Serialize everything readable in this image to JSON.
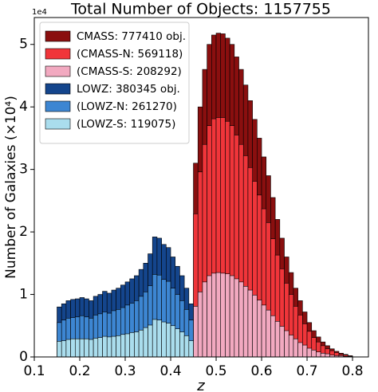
{
  "chart_data": {
    "type": "histogram",
    "title": "Total Number of Objects: 1157755",
    "xlabel": "z",
    "ylabel": "Number of Galaxies (×10⁴)",
    "y_offset_text": "1e4",
    "xlim": [
      0.1,
      0.835
    ],
    "ylim": [
      0,
      5.43
    ],
    "xticks": [
      0.1,
      0.2,
      0.3,
      0.4,
      0.5,
      0.6,
      0.7,
      0.8
    ],
    "yticks": [
      0,
      1,
      2,
      3,
      4,
      5
    ],
    "legend": "upper left",
    "edge_color": "#000000",
    "series": [
      {
        "name": "CMASS: 777410 obj.",
        "color": "#8a0f0f",
        "bins": [
          0.45,
          0.46,
          0.47,
          0.48,
          0.49,
          0.5,
          0.51,
          0.52,
          0.53,
          0.54,
          0.55,
          0.56,
          0.57,
          0.58,
          0.59,
          0.6,
          0.61,
          0.62,
          0.63,
          0.64,
          0.65,
          0.66,
          0.67,
          0.68,
          0.69,
          0.7,
          0.71,
          0.72,
          0.73,
          0.74,
          0.75,
          0.76,
          0.77,
          0.78,
          0.79,
          0.8
        ],
        "values": [
          3.1,
          4.0,
          4.6,
          5.0,
          5.15,
          5.18,
          5.17,
          5.1,
          5.0,
          4.8,
          4.6,
          4.35,
          4.1,
          3.8,
          3.5,
          3.2,
          2.9,
          2.55,
          2.2,
          1.9,
          1.6,
          1.35,
          1.1,
          0.9,
          0.72,
          0.55,
          0.42,
          0.32,
          0.24,
          0.18,
          0.13,
          0.09,
          0.06,
          0.04,
          0.02
        ]
      },
      {
        "name": "(CMASS-N: 569118)",
        "color": "#f0353a",
        "bins": [
          0.45,
          0.46,
          0.47,
          0.48,
          0.49,
          0.5,
          0.51,
          0.52,
          0.53,
          0.54,
          0.55,
          0.56,
          0.57,
          0.58,
          0.59,
          0.6,
          0.61,
          0.62,
          0.63,
          0.64,
          0.65,
          0.66,
          0.67,
          0.68,
          0.69,
          0.7,
          0.71,
          0.72,
          0.73,
          0.74,
          0.75,
          0.76,
          0.77,
          0.78,
          0.79,
          0.8
        ],
        "values": [
          2.29,
          2.96,
          3.4,
          3.7,
          3.81,
          3.83,
          3.83,
          3.77,
          3.7,
          3.55,
          3.4,
          3.22,
          3.03,
          2.81,
          2.59,
          2.37,
          2.15,
          1.89,
          1.63,
          1.41,
          1.18,
          1.0,
          0.81,
          0.67,
          0.53,
          0.41,
          0.31,
          0.24,
          0.18,
          0.13,
          0.1,
          0.07,
          0.04,
          0.03,
          0.01
        ]
      },
      {
        "name": "(CMASS-S: 208292)",
        "color": "#f2a9c0",
        "bins": [
          0.45,
          0.46,
          0.47,
          0.48,
          0.49,
          0.5,
          0.51,
          0.52,
          0.53,
          0.54,
          0.55,
          0.56,
          0.57,
          0.58,
          0.59,
          0.6,
          0.61,
          0.62,
          0.63,
          0.64,
          0.65,
          0.66,
          0.67,
          0.68,
          0.69,
          0.7,
          0.71,
          0.72,
          0.73,
          0.74,
          0.75,
          0.76,
          0.77,
          0.78,
          0.79,
          0.8
        ],
        "values": [
          0.81,
          1.04,
          1.2,
          1.3,
          1.34,
          1.35,
          1.34,
          1.33,
          1.3,
          1.25,
          1.2,
          1.13,
          1.07,
          0.99,
          0.91,
          0.83,
          0.75,
          0.66,
          0.57,
          0.49,
          0.42,
          0.35,
          0.29,
          0.23,
          0.19,
          0.14,
          0.11,
          0.08,
          0.06,
          0.05,
          0.03,
          0.02,
          0.02,
          0.01,
          0.01
        ]
      },
      {
        "name": "LOWZ: 380345 obj.",
        "color": "#14458c",
        "bins": [
          0.15,
          0.16,
          0.17,
          0.18,
          0.19,
          0.2,
          0.21,
          0.22,
          0.23,
          0.24,
          0.25,
          0.26,
          0.27,
          0.28,
          0.29,
          0.3,
          0.31,
          0.32,
          0.33,
          0.34,
          0.35,
          0.36,
          0.37,
          0.38,
          0.39,
          0.4,
          0.41,
          0.42,
          0.43,
          0.44,
          0.45
        ],
        "values": [
          0.8,
          0.85,
          0.9,
          0.92,
          0.93,
          0.95,
          0.93,
          0.9,
          0.97,
          1.0,
          1.05,
          1.02,
          1.07,
          1.1,
          1.15,
          1.2,
          1.25,
          1.3,
          1.4,
          1.5,
          1.65,
          1.92,
          1.9,
          1.8,
          1.75,
          1.6,
          1.45,
          1.3,
          1.1,
          0.85
        ]
      },
      {
        "name": "(LOWZ-N: 261270)",
        "color": "#3d86d2",
        "bins": [
          0.15,
          0.16,
          0.17,
          0.18,
          0.19,
          0.2,
          0.21,
          0.22,
          0.23,
          0.24,
          0.25,
          0.26,
          0.27,
          0.28,
          0.29,
          0.3,
          0.31,
          0.32,
          0.33,
          0.34,
          0.35,
          0.36,
          0.37,
          0.38,
          0.39,
          0.4,
          0.41,
          0.42,
          0.43,
          0.44,
          0.45
        ],
        "values": [
          0.55,
          0.59,
          0.62,
          0.63,
          0.64,
          0.66,
          0.64,
          0.62,
          0.67,
          0.69,
          0.72,
          0.7,
          0.74,
          0.76,
          0.79,
          0.83,
          0.86,
          0.9,
          0.97,
          1.04,
          1.14,
          1.32,
          1.31,
          1.24,
          1.21,
          1.1,
          1.0,
          0.9,
          0.76,
          0.59
        ]
      },
      {
        "name": "(LOWZ-S: 119075)",
        "color": "#aadded",
        "bins": [
          0.15,
          0.16,
          0.17,
          0.18,
          0.19,
          0.2,
          0.21,
          0.22,
          0.23,
          0.24,
          0.25,
          0.26,
          0.27,
          0.28,
          0.29,
          0.3,
          0.31,
          0.32,
          0.33,
          0.34,
          0.35,
          0.36,
          0.37,
          0.38,
          0.39,
          0.4,
          0.41,
          0.42,
          0.43,
          0.44,
          0.45
        ],
        "values": [
          0.25,
          0.26,
          0.28,
          0.29,
          0.29,
          0.29,
          0.29,
          0.28,
          0.3,
          0.31,
          0.33,
          0.32,
          0.33,
          0.34,
          0.36,
          0.37,
          0.39,
          0.4,
          0.43,
          0.47,
          0.51,
          0.6,
          0.59,
          0.56,
          0.54,
          0.5,
          0.45,
          0.4,
          0.34,
          0.26
        ]
      }
    ]
  }
}
